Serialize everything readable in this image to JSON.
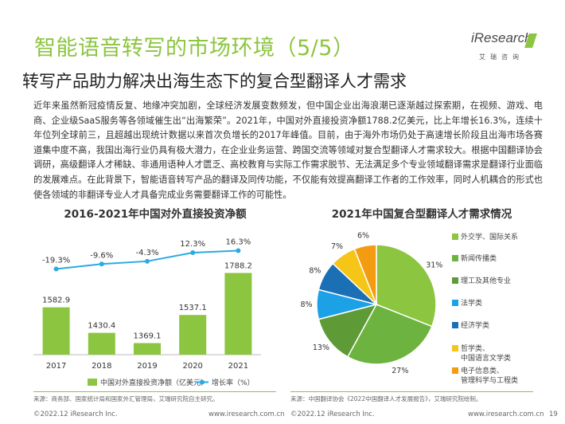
{
  "header": {
    "title": "智能语音转写的市场环境（5/5）",
    "subtitle": "转写产品助力解决出海生态下的复合型翻译人才需求",
    "logo_text": "iResearch",
    "logo_cn": "艾瑞咨询"
  },
  "body": {
    "paragraph": "近年来虽然新冠疫情反复、地缘冲突加剧，全球经济发展变数频发，但中国企业出海浪潮已逐渐越过探索期，在视频、游戏、电商、企业级SaaS服务等各领域催生出“出海繁荣”。2021年，中国对外直接投资净额1788.2亿美元，比上年增长16.3%，连续十年位列全球前三，且超越出现统计数据以来首次负增长的2017年峰值。目前，由于海外市场仍处于高速增长阶段且出海市场各赛道集中度不高，我国出海行业仍具有极大潜力，在企业业务运营、跨国交流等领域对复合型翻译人才需求较大。根据中国翻译协会调研，高级翻译人才稀缺、非通用语种人才匮乏、高校教育与实际工作需求脱节、无法满足多个专业领域翻译需求是翻译行业面临的发展难点。在此背景下，智能语音转写产品的翻译及同传功能，不仅能有效提高翻译工作者的工作效率，同时人机耦合的形式也使各领域的非翻译专业人才具备完成业务需要翻译工作的可能性。"
  },
  "left_panel": {
    "source": "来源：商务部、国家统计局和国家外汇管理局，艾瑞研究院自主研究。"
  },
  "right_panel": {
    "source": "来源：中国翻译协会《2022中国翻译人才发展报告》，艾瑞研究院绘制。"
  },
  "footer": {
    "left_copyright": "©2022.12 iResearch Inc.",
    "left_url": "www.iresearch.com.cn",
    "right_copyright": "©2022.12 iResearch Inc.",
    "right_url": "www.iresearch.com.cn",
    "page_number": "19"
  },
  "colors": {
    "accent": "#8cc540",
    "bar": "#8cc540",
    "line": "#29abe2"
  },
  "chart_data": [
    {
      "type": "bar",
      "title": "2016-2021年中国对外直接投资净额",
      "categories": [
        "2017",
        "2018",
        "2019",
        "2020",
        "2021"
      ],
      "series": [
        {
          "name": "中国对外直接投资净额（亿美元）",
          "type": "bar",
          "values": [
            1582.9,
            1430.4,
            1369.1,
            1537.1,
            1788.2
          ],
          "labels": [
            "1582.9",
            "1430.4",
            "1369.1",
            "1537.1",
            "1788.2"
          ]
        },
        {
          "name": "增长率（%）",
          "type": "line",
          "values": [
            -19.3,
            -9.6,
            -4.3,
            12.3,
            16.3
          ],
          "labels": [
            "-19.3%",
            "-9.6%",
            "-4.3%",
            "12.3%",
            "16.3%"
          ]
        }
      ],
      "legend": "bottom"
    },
    {
      "type": "pie",
      "title": "2021年中国复合型翻译人才需求情况",
      "slices": [
        {
          "label": "外交学、国际关系",
          "value": 31,
          "display": "31%",
          "color": "#8cc540"
        },
        {
          "label": "新闻传播类",
          "value": 27,
          "display": "27%",
          "color": "#6db33f"
        },
        {
          "label": "理工及其他专业",
          "value": 13,
          "display": "13%",
          "color": "#5e9a36"
        },
        {
          "label": "法学类",
          "value": 8,
          "display": "8%",
          "color": "#1da1e6"
        },
        {
          "label": "经济学类",
          "value": 8,
          "display": "8%",
          "color": "#1a6fb5"
        },
        {
          "label": "哲学类、中国语言文学类",
          "value": 7,
          "display": "7%",
          "color": "#f5c518"
        },
        {
          "label": "电子信息类、管理科学与工程类",
          "value": 6,
          "display": "6%",
          "color": "#f39c12"
        }
      ],
      "legend": "right"
    }
  ]
}
